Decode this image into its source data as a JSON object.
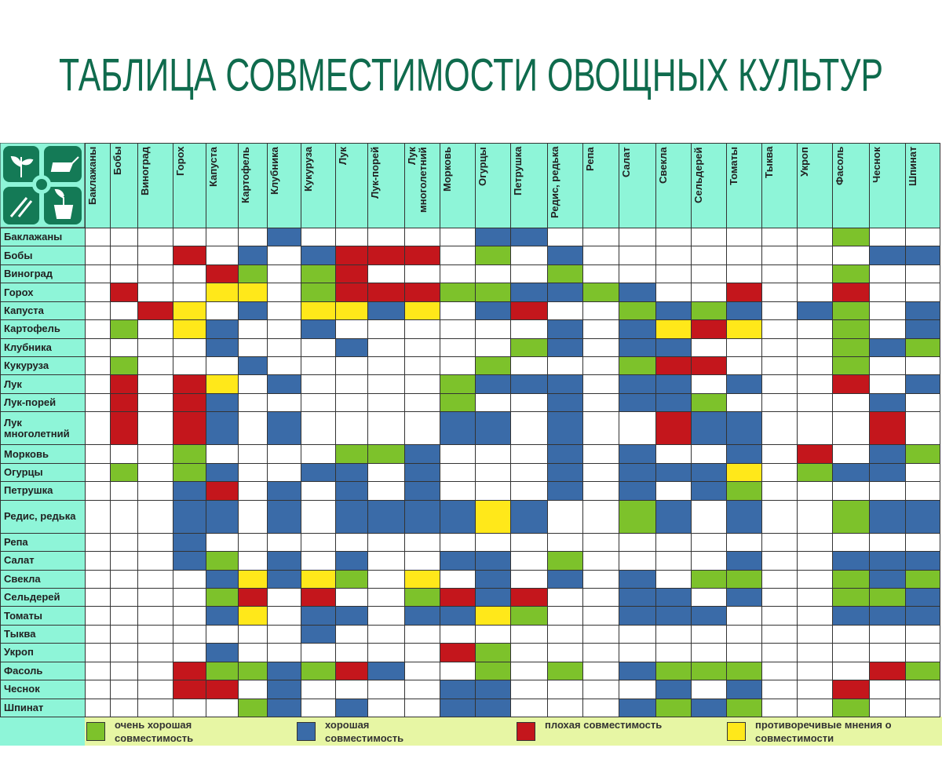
{
  "header": {
    "title": "ТАБЛИЦА СОВМЕСТИМОСТИ ОВОЩНЫХ КУЛЬТУР"
  },
  "table": {
    "columns": [
      "Баклажаны",
      "Бобы",
      "Виноград",
      "Горох",
      "Капуста",
      "Картофель",
      "Клубника",
      "Кукуруза",
      "Лук",
      "Лук-порей",
      "Лук многолетний",
      "Морковь",
      "Огурцы",
      "Петрушка",
      "Редис, редька",
      "Репа",
      "Салат",
      "Свекла",
      "Сельдерей",
      "Томаты",
      "Тыква",
      "Укроп",
      "Фасоль",
      "Чеснок",
      "Шпинат"
    ],
    "rows": [
      "Баклажаны",
      "Бобы",
      "Виноград",
      "Горох",
      "Капуста",
      "Картофель",
      "Клубника",
      "Кукуруза",
      "Лук",
      "Лук-порей",
      "Лук многолетний",
      "Морковь",
      "Огурцы",
      "Петрушка",
      "Редис, редька",
      "Репа",
      "Салат",
      "Свекла",
      "Сельдерей",
      "Томаты",
      "Тыква",
      "Укроп",
      "Фасоль",
      "Чеснок",
      "Шпинат"
    ],
    "cells": [
      [
        null,
        null,
        null,
        null,
        null,
        null,
        "#3a6ba8",
        null,
        null,
        null,
        null,
        null,
        "#3a6ba8",
        "#3a6ba8",
        null,
        null,
        null,
        null,
        null,
        null,
        null,
        null,
        "#7dc22b",
        null,
        null
      ],
      [
        null,
        null,
        null,
        "#c4161c",
        null,
        "#3a6ba8",
        null,
        "#3a6ba8",
        "#c4161c",
        "#c4161c",
        "#c4161c",
        null,
        "#7dc22b",
        null,
        "#3a6ba8",
        null,
        null,
        null,
        null,
        null,
        null,
        null,
        null,
        "#3a6ba8",
        "#3a6ba8"
      ],
      [
        null,
        null,
        null,
        null,
        "#c4161c",
        "#7dc22b",
        null,
        "#7dc22b",
        "#c4161c",
        null,
        null,
        null,
        null,
        null,
        "#7dc22b",
        null,
        null,
        null,
        null,
        null,
        null,
        null,
        "#7dc22b",
        null,
        null
      ],
      [
        null,
        "#c4161c",
        null,
        null,
        "#ffe81a",
        "#ffe81a",
        null,
        "#7dc22b",
        "#c4161c",
        "#c4161c",
        "#c4161c",
        "#7dc22b",
        "#7dc22b",
        "#3a6ba8",
        "#3a6ba8",
        "#7dc22b",
        "#3a6ba8",
        null,
        null,
        "#c4161c",
        null,
        null,
        "#c4161c",
        null,
        null
      ],
      [
        null,
        null,
        "#c4161c",
        "#ffe81a",
        null,
        "#3a6ba8",
        null,
        "#ffe81a",
        "#ffe81a",
        "#3a6ba8",
        "#ffe81a",
        null,
        "#3a6ba8",
        "#c4161c",
        null,
        null,
        "#7dc22b",
        "#3a6ba8",
        "#7dc22b",
        "#3a6ba8",
        null,
        "#3a6ba8",
        "#7dc22b",
        null,
        "#3a6ba8"
      ],
      [
        null,
        "#7dc22b",
        null,
        "#ffe81a",
        "#3a6ba8",
        null,
        null,
        "#3a6ba8",
        null,
        null,
        null,
        null,
        null,
        null,
        "#3a6ba8",
        null,
        "#3a6ba8",
        "#ffe81a",
        "#c4161c",
        "#ffe81a",
        null,
        null,
        "#7dc22b",
        null,
        "#3a6ba8"
      ],
      [
        null,
        null,
        null,
        null,
        "#3a6ba8",
        null,
        null,
        null,
        "#3a6ba8",
        null,
        null,
        null,
        null,
        "#7dc22b",
        "#3a6ba8",
        null,
        "#3a6ba8",
        "#3a6ba8",
        null,
        null,
        null,
        null,
        "#7dc22b",
        "#3a6ba8",
        "#7dc22b"
      ],
      [
        null,
        "#7dc22b",
        null,
        null,
        null,
        "#3a6ba8",
        null,
        null,
        null,
        null,
        null,
        null,
        "#7dc22b",
        null,
        null,
        null,
        "#7dc22b",
        "#c4161c",
        "#c4161c",
        null,
        null,
        null,
        "#7dc22b",
        null,
        null
      ],
      [
        null,
        "#c4161c",
        null,
        "#c4161c",
        "#ffe81a",
        null,
        "#3a6ba8",
        null,
        null,
        null,
        null,
        "#7dc22b",
        "#3a6ba8",
        "#3a6ba8",
        "#3a6ba8",
        null,
        "#3a6ba8",
        "#3a6ba8",
        null,
        "#3a6ba8",
        null,
        null,
        "#c4161c",
        null,
        "#3a6ba8"
      ],
      [
        null,
        "#c4161c",
        null,
        "#c4161c",
        "#3a6ba8",
        null,
        null,
        null,
        null,
        null,
        null,
        "#7dc22b",
        null,
        null,
        "#3a6ba8",
        null,
        "#3a6ba8",
        "#3a6ba8",
        "#7dc22b",
        null,
        null,
        null,
        null,
        "#3a6ba8",
        null
      ],
      [
        null,
        "#c4161c",
        null,
        "#c4161c",
        "#3a6ba8",
        null,
        "#3a6ba8",
        null,
        null,
        null,
        null,
        "#3a6ba8",
        "#3a6ba8",
        null,
        "#3a6ba8",
        null,
        null,
        "#c4161c",
        "#3a6ba8",
        "#3a6ba8",
        null,
        null,
        null,
        "#c4161c",
        null
      ],
      [
        null,
        null,
        null,
        "#7dc22b",
        null,
        null,
        null,
        null,
        "#7dc22b",
        "#7dc22b",
        "#3a6ba8",
        null,
        null,
        null,
        "#3a6ba8",
        null,
        "#3a6ba8",
        null,
        null,
        "#3a6ba8",
        null,
        "#c4161c",
        null,
        "#3a6ba8",
        "#7dc22b"
      ],
      [
        null,
        "#7dc22b",
        null,
        "#7dc22b",
        "#3a6ba8",
        null,
        null,
        "#3a6ba8",
        "#3a6ba8",
        null,
        "#3a6ba8",
        null,
        null,
        null,
        "#3a6ba8",
        null,
        "#3a6ba8",
        "#3a6ba8",
        "#3a6ba8",
        "#ffe81a",
        null,
        "#7dc22b",
        "#3a6ba8",
        "#3a6ba8",
        null
      ],
      [
        null,
        null,
        null,
        "#3a6ba8",
        "#c4161c",
        null,
        "#3a6ba8",
        null,
        "#3a6ba8",
        null,
        "#3a6ba8",
        null,
        null,
        null,
        "#3a6ba8",
        null,
        "#3a6ba8",
        null,
        "#3a6ba8",
        "#7dc22b",
        null,
        null,
        null,
        null,
        null
      ],
      [
        null,
        null,
        null,
        "#3a6ba8",
        "#3a6ba8",
        null,
        "#3a6ba8",
        null,
        "#3a6ba8",
        "#3a6ba8",
        "#3a6ba8",
        "#3a6ba8",
        "#ffe81a",
        "#3a6ba8",
        null,
        null,
        "#7dc22b",
        "#3a6ba8",
        null,
        "#3a6ba8",
        null,
        null,
        "#7dc22b",
        "#3a6ba8",
        "#3a6ba8"
      ],
      [
        null,
        null,
        null,
        "#3a6ba8",
        null,
        null,
        null,
        null,
        null,
        null,
        null,
        null,
        null,
        null,
        null,
        null,
        null,
        null,
        null,
        null,
        null,
        null,
        null,
        null,
        null
      ],
      [
        null,
        null,
        null,
        "#3a6ba8",
        "#7dc22b",
        null,
        "#3a6ba8",
        null,
        "#3a6ba8",
        null,
        null,
        "#3a6ba8",
        "#3a6ba8",
        null,
        "#7dc22b",
        null,
        null,
        null,
        null,
        "#3a6ba8",
        null,
        null,
        "#3a6ba8",
        "#3a6ba8",
        "#3a6ba8"
      ],
      [
        null,
        null,
        null,
        null,
        "#3a6ba8",
        "#ffe81a",
        "#3a6ba8",
        "#ffe81a",
        "#7dc22b",
        null,
        "#ffe81a",
        null,
        "#3a6ba8",
        null,
        "#3a6ba8",
        null,
        "#3a6ba8",
        null,
        "#7dc22b",
        "#7dc22b",
        null,
        null,
        "#7dc22b",
        "#3a6ba8",
        "#7dc22b"
      ],
      [
        null,
        null,
        null,
        null,
        "#7dc22b",
        "#c4161c",
        null,
        "#c4161c",
        null,
        null,
        "#7dc22b",
        "#c4161c",
        "#3a6ba8",
        "#c4161c",
        null,
        null,
        "#3a6ba8",
        "#3a6ba8",
        null,
        "#3a6ba8",
        null,
        null,
        "#7dc22b",
        "#7dc22b",
        "#3a6ba8"
      ],
      [
        null,
        null,
        null,
        null,
        "#3a6ba8",
        "#ffe81a",
        null,
        "#3a6ba8",
        "#3a6ba8",
        null,
        "#3a6ba8",
        "#3a6ba8",
        "#ffe81a",
        "#7dc22b",
        null,
        null,
        "#3a6ba8",
        "#3a6ba8",
        "#3a6ba8",
        null,
        null,
        null,
        "#3a6ba8",
        "#3a6ba8",
        "#3a6ba8"
      ],
      [
        null,
        null,
        null,
        null,
        null,
        null,
        null,
        "#3a6ba8",
        null,
        null,
        null,
        null,
        null,
        null,
        null,
        null,
        null,
        null,
        null,
        null,
        null,
        null,
        null,
        null,
        null
      ],
      [
        null,
        null,
        null,
        null,
        "#3a6ba8",
        null,
        null,
        null,
        null,
        null,
        null,
        "#c4161c",
        "#7dc22b",
        null,
        null,
        null,
        null,
        null,
        null,
        null,
        null,
        null,
        null,
        null,
        null
      ],
      [
        null,
        null,
        null,
        "#c4161c",
        "#7dc22b",
        "#7dc22b",
        "#3a6ba8",
        "#7dc22b",
        "#c4161c",
        "#3a6ba8",
        null,
        null,
        "#7dc22b",
        null,
        "#7dc22b",
        null,
        "#3a6ba8",
        "#7dc22b",
        "#7dc22b",
        "#7dc22b",
        null,
        null,
        null,
        "#c4161c",
        "#7dc22b"
      ],
      [
        null,
        null,
        null,
        "#c4161c",
        "#c4161c",
        null,
        "#3a6ba8",
        null,
        null,
        null,
        null,
        "#3a6ba8",
        "#3a6ba8",
        null,
        null,
        null,
        null,
        "#3a6ba8",
        null,
        "#3a6ba8",
        null,
        null,
        "#c4161c",
        null,
        null
      ],
      [
        null,
        null,
        null,
        null,
        null,
        "#7dc22b",
        "#3a6ba8",
        null,
        "#3a6ba8",
        null,
        null,
        "#3a6ba8",
        "#3a6ba8",
        null,
        null,
        null,
        "#3a6ba8",
        "#7dc22b",
        "#3a6ba8",
        "#7dc22b",
        null,
        null,
        "#7dc22b",
        null,
        null
      ]
    ]
  },
  "legend": [
    {
      "color": "#7dc22b",
      "label": "очень хорошая совместимость"
    },
    {
      "color": "#3a6ba8",
      "label": "хорошая совместимость"
    },
    {
      "color": "#c4161c",
      "label": "плохая совместимость"
    },
    {
      "color": "#ffe81a",
      "label": "противоречивые мнения о совместимости"
    }
  ]
}
